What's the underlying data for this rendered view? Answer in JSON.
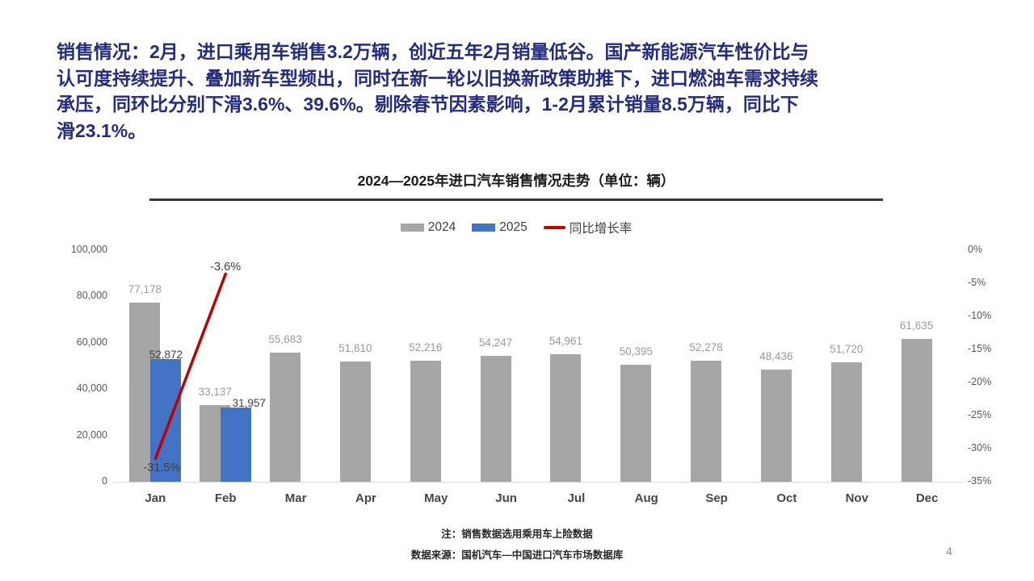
{
  "headline": {
    "color": "#242c7e",
    "lines": [
      "销售情况：2月，进口乘用车销售3.2万辆，创近五年2月销量低谷。国产新能源汽车性价比与",
      "认可度持续提升、叠加新车型频出，同时在新一轮以旧换新政策助推下，进口燃油车需求持续",
      "承压，同环比分别下滑3.6%、39.6%。剔除春节因素影响，1-2月累计销量8.5万辆，同比下",
      "滑23.1%。"
    ]
  },
  "chart": {
    "title": "2024—2025年进口汽车销售情况走势（单位：辆）",
    "legend": [
      {
        "label": "2024",
        "color": "#a6a6a6",
        "type": "swatch"
      },
      {
        "label": "2025",
        "color": "#4472c4",
        "type": "swatch"
      },
      {
        "label": "同比增长率",
        "color": "#c00000",
        "type": "line"
      }
    ]
  },
  "chart_data": {
    "type": "bar",
    "title": "2024—2025年进口汽车销售情况走势（单位：辆）",
    "categories": [
      "Jan",
      "Feb",
      "Mar",
      "Apr",
      "May",
      "Jun",
      "Jul",
      "Aug",
      "Sep",
      "Oct",
      "Nov",
      "Dec"
    ],
    "series": [
      {
        "name": "2024",
        "type": "bar",
        "color": "#a6a6a6",
        "values": [
          77178,
          33137,
          55683,
          51810,
          52216,
          54247,
          54961,
          50395,
          52278,
          48436,
          51720,
          61635
        ]
      },
      {
        "name": "2025",
        "type": "bar",
        "color": "#4472c4",
        "values": [
          52872,
          31957,
          null,
          null,
          null,
          null,
          null,
          null,
          null,
          null,
          null,
          null
        ]
      },
      {
        "name": "同比增长率",
        "type": "line",
        "color": "#c00000",
        "axis": "right",
        "values": [
          -31.5,
          -3.6,
          null,
          null,
          null,
          null,
          null,
          null,
          null,
          null,
          null,
          null
        ]
      }
    ],
    "left_axis": {
      "min": 0,
      "max": 100000,
      "ticks": [
        "0",
        "20,000",
        "40,000",
        "60,000",
        "80,000",
        "100,000"
      ]
    },
    "right_axis": {
      "min": -35,
      "max": 0,
      "ticks": [
        "0%",
        "-5%",
        "-10%",
        "-15%",
        "-20%",
        "-25%",
        "-30%",
        "-35%"
      ]
    },
    "legend_position": "top",
    "grid": false
  },
  "footer": {
    "note": "注：销售数据选用乘用车上险数据",
    "source": "数据来源：国机汽车—中国进口汽车市场数据库",
    "page_number": "4"
  }
}
